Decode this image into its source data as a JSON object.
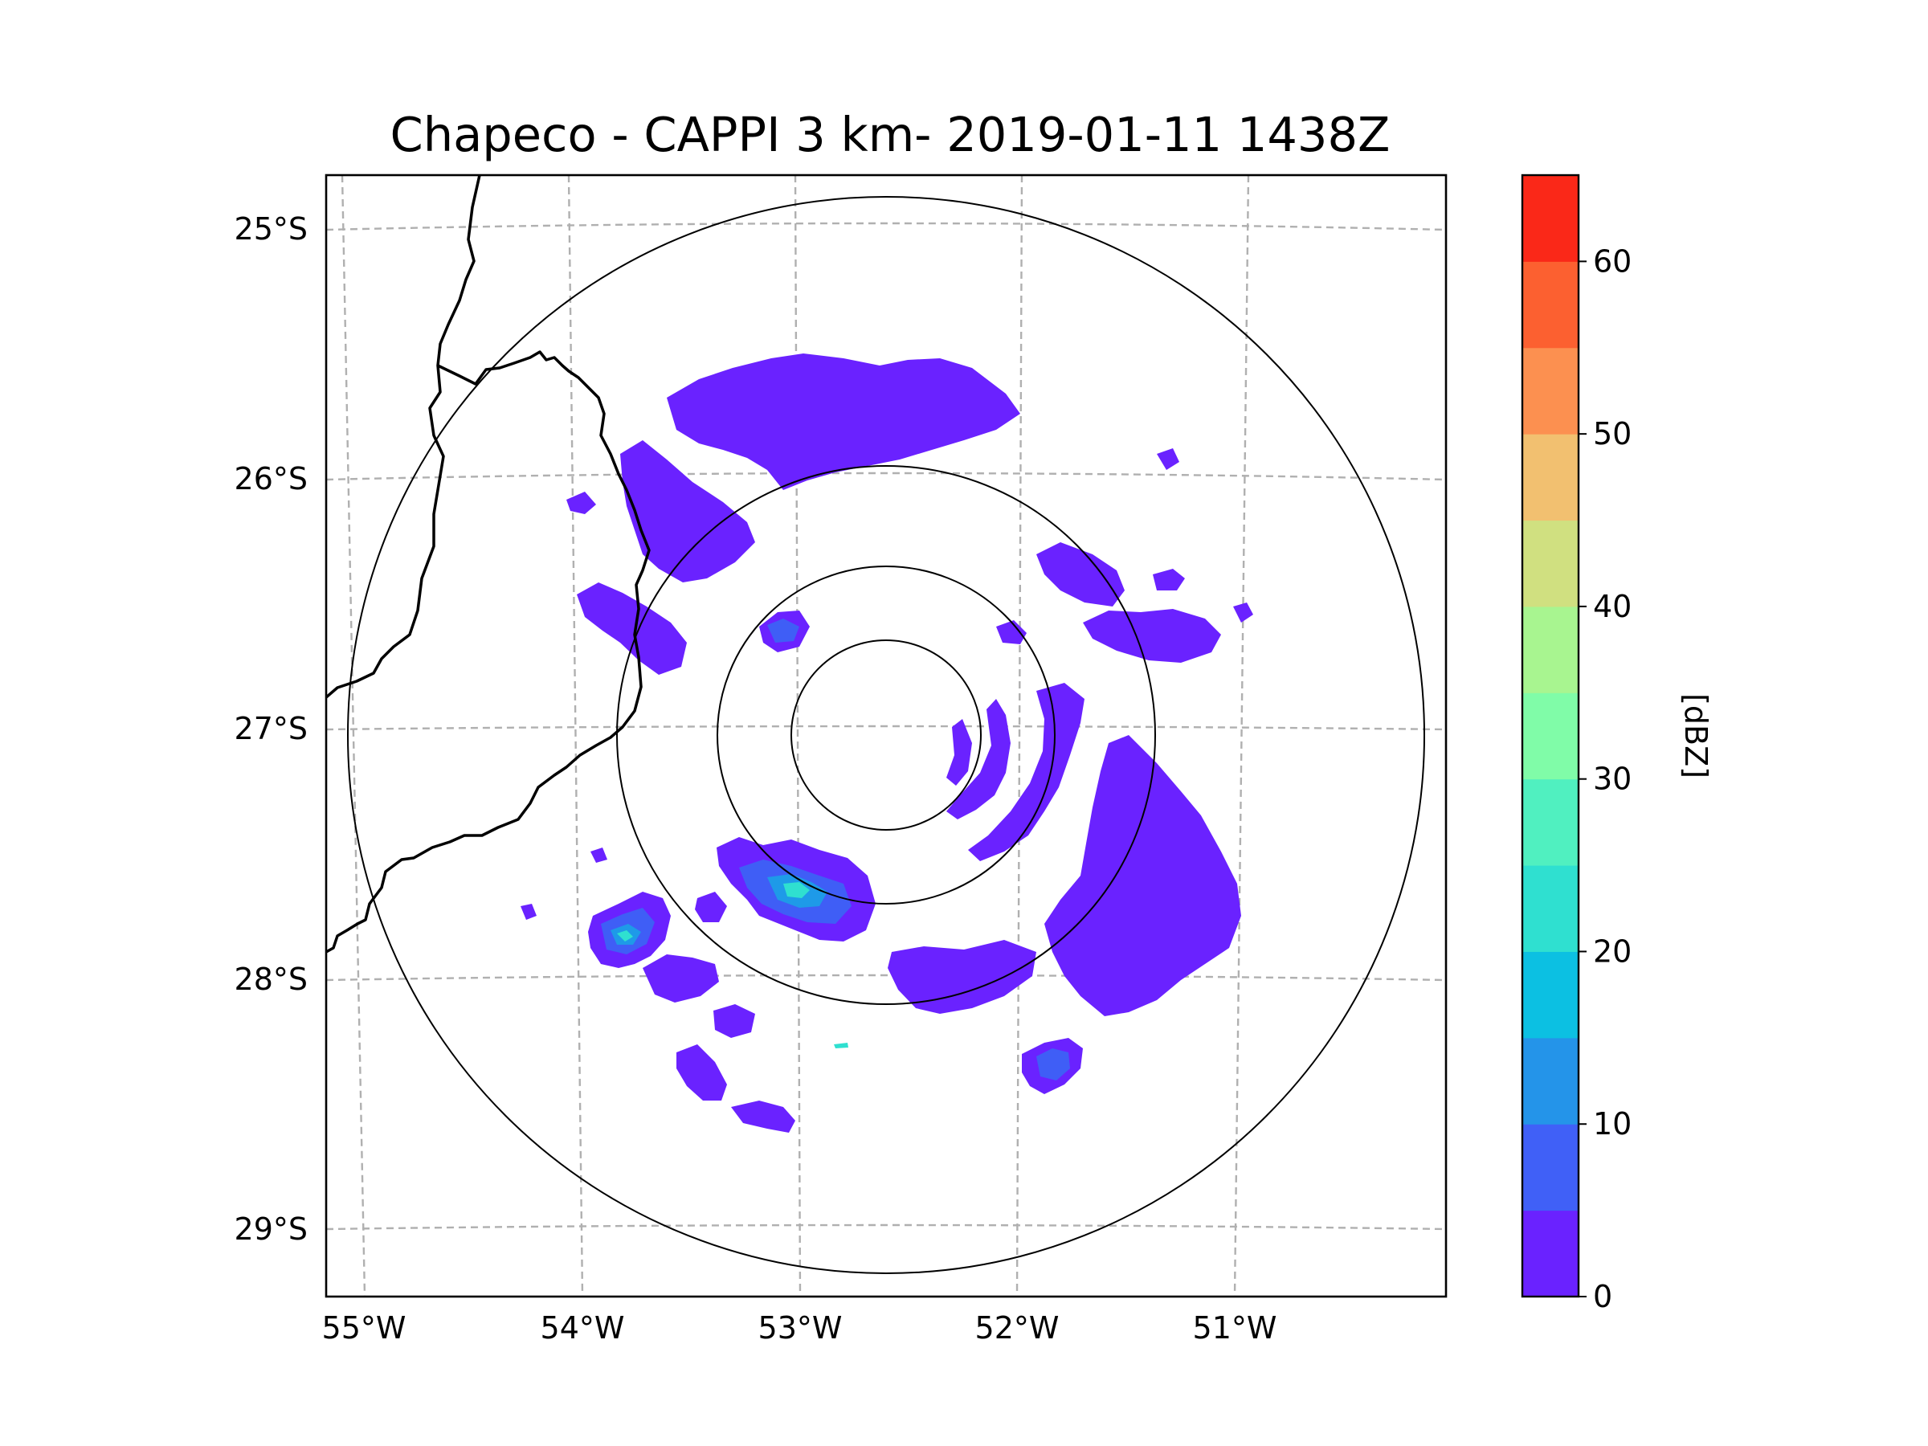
{
  "title": "Chapeco - CAPPI 3 km- 2019-01-11 1438Z",
  "map": {
    "lat_ticks": [
      "25°S",
      "26°S",
      "27°S",
      "28°S",
      "29°S"
    ],
    "lon_ticks": [
      "55°W",
      "54°W",
      "53°W",
      "52°W",
      "51°W"
    ],
    "radar_center": {
      "lat": -27.03,
      "lon": -52.6
    },
    "range_rings_count": 4
  },
  "colorbar": {
    "label": "[dBZ]",
    "tick_labels": [
      "0",
      "10",
      "20",
      "30",
      "40",
      "50",
      "60"
    ],
    "levels": [
      0,
      5,
      10,
      15,
      20,
      25,
      30,
      35,
      40,
      45,
      50,
      55,
      60,
      65
    ],
    "colors": [
      "#6a22ff",
      "#4060f7",
      "#2494e9",
      "#0cc0e2",
      "#2fe0d0",
      "#50f0c0",
      "#80fca8",
      "#a8f590",
      "#d0e080",
      "#f2c070",
      "#fc9050",
      "#fc6030",
      "#fa2818"
    ]
  }
}
